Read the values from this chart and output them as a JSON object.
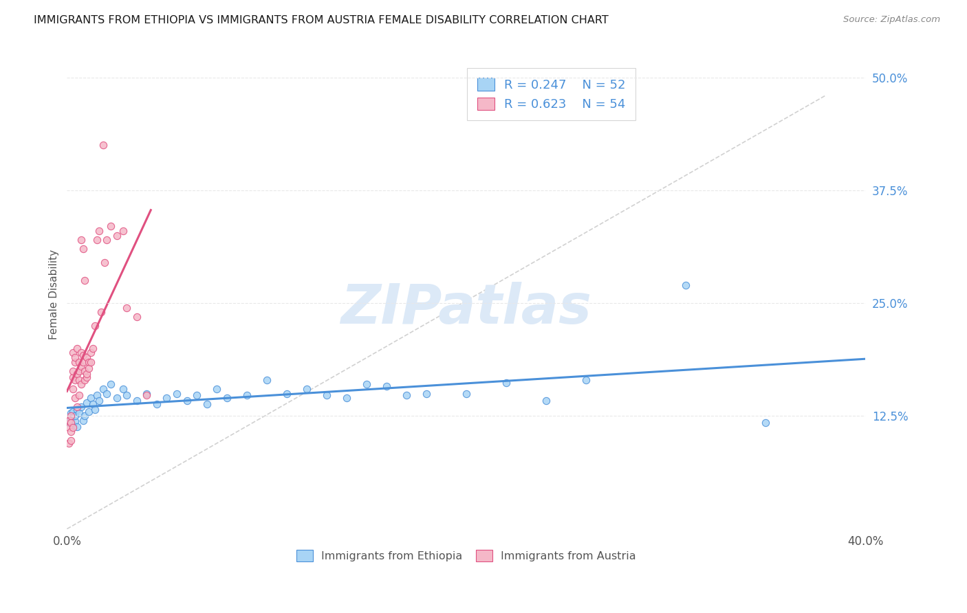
{
  "title": "IMMIGRANTS FROM ETHIOPIA VS IMMIGRANTS FROM AUSTRIA FEMALE DISABILITY CORRELATION CHART",
  "source": "Source: ZipAtlas.com",
  "ylabel": "Female Disability",
  "xlim": [
    0.0,
    0.4
  ],
  "ylim": [
    0.0,
    0.52
  ],
  "xticks": [
    0.0,
    0.1,
    0.2,
    0.3,
    0.4
  ],
  "xtick_labels": [
    "0.0%",
    "",
    "",
    "",
    "40.0%"
  ],
  "ytick_labels_right": [
    "12.5%",
    "25.0%",
    "37.5%",
    "50.0%"
  ],
  "ytick_positions_right": [
    0.125,
    0.25,
    0.375,
    0.5
  ],
  "ethiopia_R": 0.247,
  "ethiopia_N": 52,
  "austria_R": 0.623,
  "austria_N": 54,
  "ethiopia_color": "#a8d4f5",
  "austria_color": "#f5b8c8",
  "ethiopia_line_color": "#4a90d9",
  "austria_line_color": "#e05080",
  "diagonal_color": "#cccccc",
  "background_color": "#ffffff",
  "grid_color": "#e8e8e8",
  "title_color": "#1a1a1a",
  "legend_color": "#4a90d9",
  "watermark_text": "ZIPatlas",
  "watermark_color": "#dce9f7",
  "ethiopia_x": [
    0.001,
    0.002,
    0.002,
    0.003,
    0.003,
    0.004,
    0.004,
    0.005,
    0.005,
    0.006,
    0.007,
    0.008,
    0.009,
    0.01,
    0.011,
    0.012,
    0.013,
    0.014,
    0.015,
    0.016,
    0.018,
    0.02,
    0.022,
    0.025,
    0.028,
    0.03,
    0.035,
    0.04,
    0.045,
    0.05,
    0.055,
    0.06,
    0.065,
    0.07,
    0.075,
    0.08,
    0.09,
    0.1,
    0.11,
    0.12,
    0.13,
    0.14,
    0.15,
    0.16,
    0.17,
    0.18,
    0.2,
    0.22,
    0.24,
    0.26,
    0.31,
    0.35
  ],
  "ethiopia_y": [
    0.118,
    0.122,
    0.128,
    0.115,
    0.13,
    0.119,
    0.125,
    0.113,
    0.132,
    0.128,
    0.135,
    0.12,
    0.125,
    0.14,
    0.13,
    0.145,
    0.138,
    0.132,
    0.148,
    0.142,
    0.155,
    0.15,
    0.16,
    0.145,
    0.155,
    0.148,
    0.142,
    0.15,
    0.138,
    0.145,
    0.15,
    0.142,
    0.148,
    0.138,
    0.155,
    0.145,
    0.148,
    0.165,
    0.15,
    0.155,
    0.148,
    0.145,
    0.16,
    0.158,
    0.148,
    0.15,
    0.15,
    0.162,
    0.142,
    0.165,
    0.27,
    0.118
  ],
  "austria_x": [
    0.001,
    0.001,
    0.001,
    0.002,
    0.002,
    0.002,
    0.002,
    0.003,
    0.003,
    0.003,
    0.003,
    0.003,
    0.004,
    0.004,
    0.004,
    0.004,
    0.005,
    0.005,
    0.005,
    0.006,
    0.006,
    0.006,
    0.006,
    0.007,
    0.007,
    0.007,
    0.008,
    0.008,
    0.008,
    0.009,
    0.009,
    0.01,
    0.01,
    0.01,
    0.011,
    0.011,
    0.012,
    0.012,
    0.013,
    0.014,
    0.015,
    0.016,
    0.017,
    0.018,
    0.019,
    0.02,
    0.022,
    0.025,
    0.028,
    0.03,
    0.035,
    0.04,
    0.007,
    0.009
  ],
  "austria_y": [
    0.112,
    0.12,
    0.095,
    0.118,
    0.125,
    0.108,
    0.098,
    0.195,
    0.155,
    0.168,
    0.175,
    0.112,
    0.185,
    0.165,
    0.145,
    0.19,
    0.2,
    0.172,
    0.135,
    0.185,
    0.165,
    0.175,
    0.148,
    0.195,
    0.18,
    0.16,
    0.31,
    0.185,
    0.192,
    0.175,
    0.165,
    0.19,
    0.168,
    0.172,
    0.185,
    0.178,
    0.185,
    0.195,
    0.2,
    0.225,
    0.32,
    0.33,
    0.24,
    0.425,
    0.295,
    0.32,
    0.335,
    0.325,
    0.33,
    0.245,
    0.235,
    0.148,
    0.32,
    0.275
  ]
}
